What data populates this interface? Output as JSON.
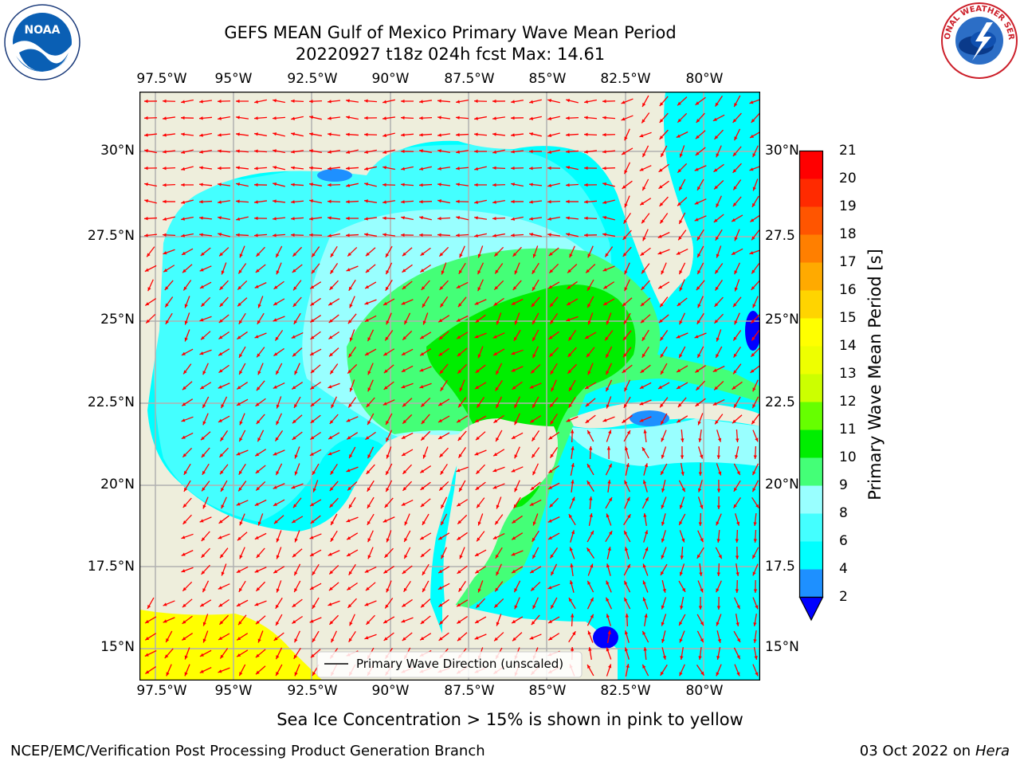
{
  "title": {
    "line1": "GEFS MEAN Gulf of Mexico Primary Wave Mean Period",
    "line2": "20220927 t18z 024h fcst   Max: 14.61"
  },
  "logos": {
    "left": {
      "text": "NOAA",
      "ring_text": "NATIONAL OCEANIC AND ATMOSPHERIC ADMINISTRATION · U.S. DEPARTMENT OF COMMERCE"
    },
    "right": {
      "ring_text": "NATIONAL WEATHER SERVICE"
    }
  },
  "map": {
    "lon_ticks_top": [
      "97.5°W",
      "95°W",
      "92.5°W",
      "90°W",
      "87.5°W",
      "85°W",
      "82.5°W",
      "80°W"
    ],
    "lon_ticks_bottom": [
      "97.5°W",
      "95°W",
      "92.5°W",
      "90°W",
      "87.5°W",
      "85°W",
      "82.5°W",
      "80°W"
    ],
    "lat_ticks_left": [
      "30°N",
      "27.5°N",
      "25°N",
      "22.5°N",
      "20°N",
      "17.5°N",
      "15°N"
    ],
    "lat_ticks_right": [
      "30°N",
      "27.5",
      "25°N",
      "22.5",
      "20°N",
      "17.5",
      "15°N"
    ],
    "lon_range": [
      -98,
      -78.2
    ],
    "lat_range": [
      14.0,
      31.8
    ],
    "legend": "Primary Wave Direction (unscaled)",
    "arrow_color": "#ff0000",
    "land_color": "#eeeedc"
  },
  "colorbar": {
    "label": "Primary Wave Mean Period [s]",
    "ticks": [
      "21",
      "20",
      "19",
      "18",
      "17",
      "16",
      "15",
      "14",
      "13",
      "12",
      "11",
      "10",
      "9",
      "8",
      "6",
      "4",
      "2"
    ],
    "colors": [
      "#ff0000",
      "#ff2a00",
      "#ff5500",
      "#ff7f00",
      "#ffaa00",
      "#ffd400",
      "#ffff00",
      "#eeff00",
      "#ccff00",
      "#66ff00",
      "#00ee00",
      "#44ff77",
      "#99ffff",
      "#44ffff",
      "#00ffff",
      "#1e90ff",
      "#0000ff"
    ]
  },
  "notes": {
    "sea_ice": "Sea Ice Concentration > 15% is shown in pink to yellow",
    "footer_left": "NCEP/EMC/Verification Post Processing Product Generation Branch",
    "footer_right_prefix": "03 Oct 2022 on ",
    "footer_right_host": "Hera"
  }
}
